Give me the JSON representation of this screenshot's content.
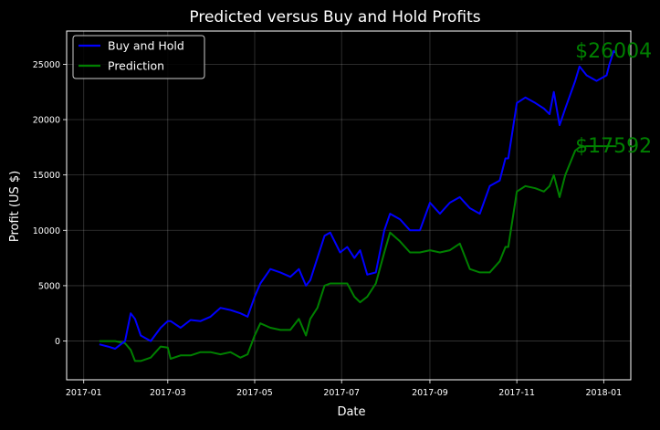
{
  "chart_data": {
    "type": "line",
    "title": "Predicted versus Buy and Hold Profits",
    "xlabel": "Date",
    "ylabel": "Profit  (US $)",
    "x_ticks": [
      "2017-01",
      "2017-03",
      "2017-05",
      "2017-07",
      "2017-09",
      "2017-11",
      "2018-01"
    ],
    "y_ticks": [
      0,
      5000,
      10000,
      15000,
      20000,
      25000
    ],
    "xlim": [
      "2016-12-20",
      "2018-01-20"
    ],
    "ylim": [
      -3500,
      28000
    ],
    "grid": true,
    "legend_position": "top-left",
    "background": "#000000",
    "series": [
      {
        "name": "Buy and Hold",
        "color": "#0000ff",
        "x": [
          "2017-01-12",
          "2017-01-18",
          "2017-01-23",
          "2017-01-30",
          "2017-02-03",
          "2017-02-06",
          "2017-02-10",
          "2017-02-17",
          "2017-02-24",
          "2017-03-01",
          "2017-03-03",
          "2017-03-10",
          "2017-03-17",
          "2017-03-24",
          "2017-03-31",
          "2017-04-07",
          "2017-04-14",
          "2017-04-21",
          "2017-04-26",
          "2017-05-01",
          "2017-05-05",
          "2017-05-12",
          "2017-05-19",
          "2017-05-26",
          "2017-06-01",
          "2017-06-06",
          "2017-06-09",
          "2017-06-14",
          "2017-06-19",
          "2017-06-23",
          "2017-06-30",
          "2017-07-05",
          "2017-07-10",
          "2017-07-14",
          "2017-07-19",
          "2017-07-25",
          "2017-07-31",
          "2017-08-04",
          "2017-08-11",
          "2017-08-18",
          "2017-08-25",
          "2017-09-01",
          "2017-09-08",
          "2017-09-15",
          "2017-09-22",
          "2017-09-29",
          "2017-10-06",
          "2017-10-13",
          "2017-10-20",
          "2017-10-24",
          "2017-10-26",
          "2017-11-01",
          "2017-11-07",
          "2017-11-14",
          "2017-11-20",
          "2017-11-24",
          "2017-11-27",
          "2017-12-01",
          "2017-12-05",
          "2017-12-12",
          "2017-12-15",
          "2017-12-20",
          "2017-12-27",
          "2018-01-03",
          "2018-01-05",
          "2018-01-08",
          "2018-01-10"
        ],
        "values": [
          -300,
          -500,
          -700,
          0,
          2500,
          2000,
          500,
          0,
          1200,
          1800,
          1800,
          1200,
          1900,
          1800,
          2200,
          3000,
          2800,
          2500,
          2200,
          4000,
          5200,
          6500,
          6200,
          5800,
          6500,
          5000,
          5500,
          7500,
          9500,
          9800,
          8000,
          8500,
          7500,
          8200,
          6000,
          6200,
          10000,
          11500,
          11000,
          10000,
          10000,
          12500,
          11500,
          12500,
          13000,
          12000,
          11500,
          14000,
          14500,
          16500,
          16500,
          21500,
          22000,
          21500,
          21000,
          20500,
          22500,
          19500,
          21000,
          23500,
          24800,
          24000,
          23500,
          24000,
          25000,
          26200,
          26000
        ]
      },
      {
        "name": "Prediction",
        "color": "#008000",
        "x": [
          "2017-01-12",
          "2017-01-18",
          "2017-01-23",
          "2017-01-30",
          "2017-02-03",
          "2017-02-06",
          "2017-02-10",
          "2017-02-17",
          "2017-02-24",
          "2017-03-01",
          "2017-03-03",
          "2017-03-10",
          "2017-03-17",
          "2017-03-24",
          "2017-03-31",
          "2017-04-07",
          "2017-04-14",
          "2017-04-21",
          "2017-04-26",
          "2017-05-01",
          "2017-05-05",
          "2017-05-12",
          "2017-05-19",
          "2017-05-26",
          "2017-06-01",
          "2017-06-06",
          "2017-06-09",
          "2017-06-14",
          "2017-06-19",
          "2017-06-23",
          "2017-06-30",
          "2017-07-05",
          "2017-07-10",
          "2017-07-14",
          "2017-07-19",
          "2017-07-25",
          "2017-07-31",
          "2017-08-04",
          "2017-08-11",
          "2017-08-18",
          "2017-08-25",
          "2017-09-01",
          "2017-09-08",
          "2017-09-15",
          "2017-09-22",
          "2017-09-29",
          "2017-10-06",
          "2017-10-13",
          "2017-10-20",
          "2017-10-24",
          "2017-10-26",
          "2017-11-01",
          "2017-11-07",
          "2017-11-14",
          "2017-11-20",
          "2017-11-24",
          "2017-11-27",
          "2017-12-01",
          "2017-12-05",
          "2017-12-12",
          "2017-12-15",
          "2017-12-20",
          "2017-12-27",
          "2018-01-03",
          "2018-01-05",
          "2018-01-08",
          "2018-01-10"
        ],
        "values": [
          0,
          0,
          0,
          -200,
          -800,
          -1800,
          -1800,
          -1500,
          -500,
          -600,
          -1600,
          -1300,
          -1300,
          -1000,
          -1000,
          -1200,
          -1000,
          -1500,
          -1200,
          500,
          1600,
          1200,
          1000,
          1000,
          2000,
          500,
          2000,
          3000,
          5000,
          5200,
          5200,
          5200,
          4000,
          3500,
          4000,
          5200,
          8000,
          9800,
          9000,
          8000,
          8000,
          8200,
          8000,
          8200,
          8800,
          6500,
          6200,
          6200,
          7200,
          8500,
          8500,
          13500,
          14000,
          13800,
          13500,
          14000,
          15000,
          13000,
          15000,
          17200,
          17500,
          17600,
          17600,
          17600,
          17600,
          17600,
          17592
        ]
      }
    ],
    "annotations": [
      {
        "text": "$26004",
        "x": "2017-12-12",
        "y": 26200,
        "color": "#008000"
      },
      {
        "text": "$17592",
        "x": "2017-12-12",
        "y": 17600,
        "color": "#008000"
      }
    ]
  }
}
